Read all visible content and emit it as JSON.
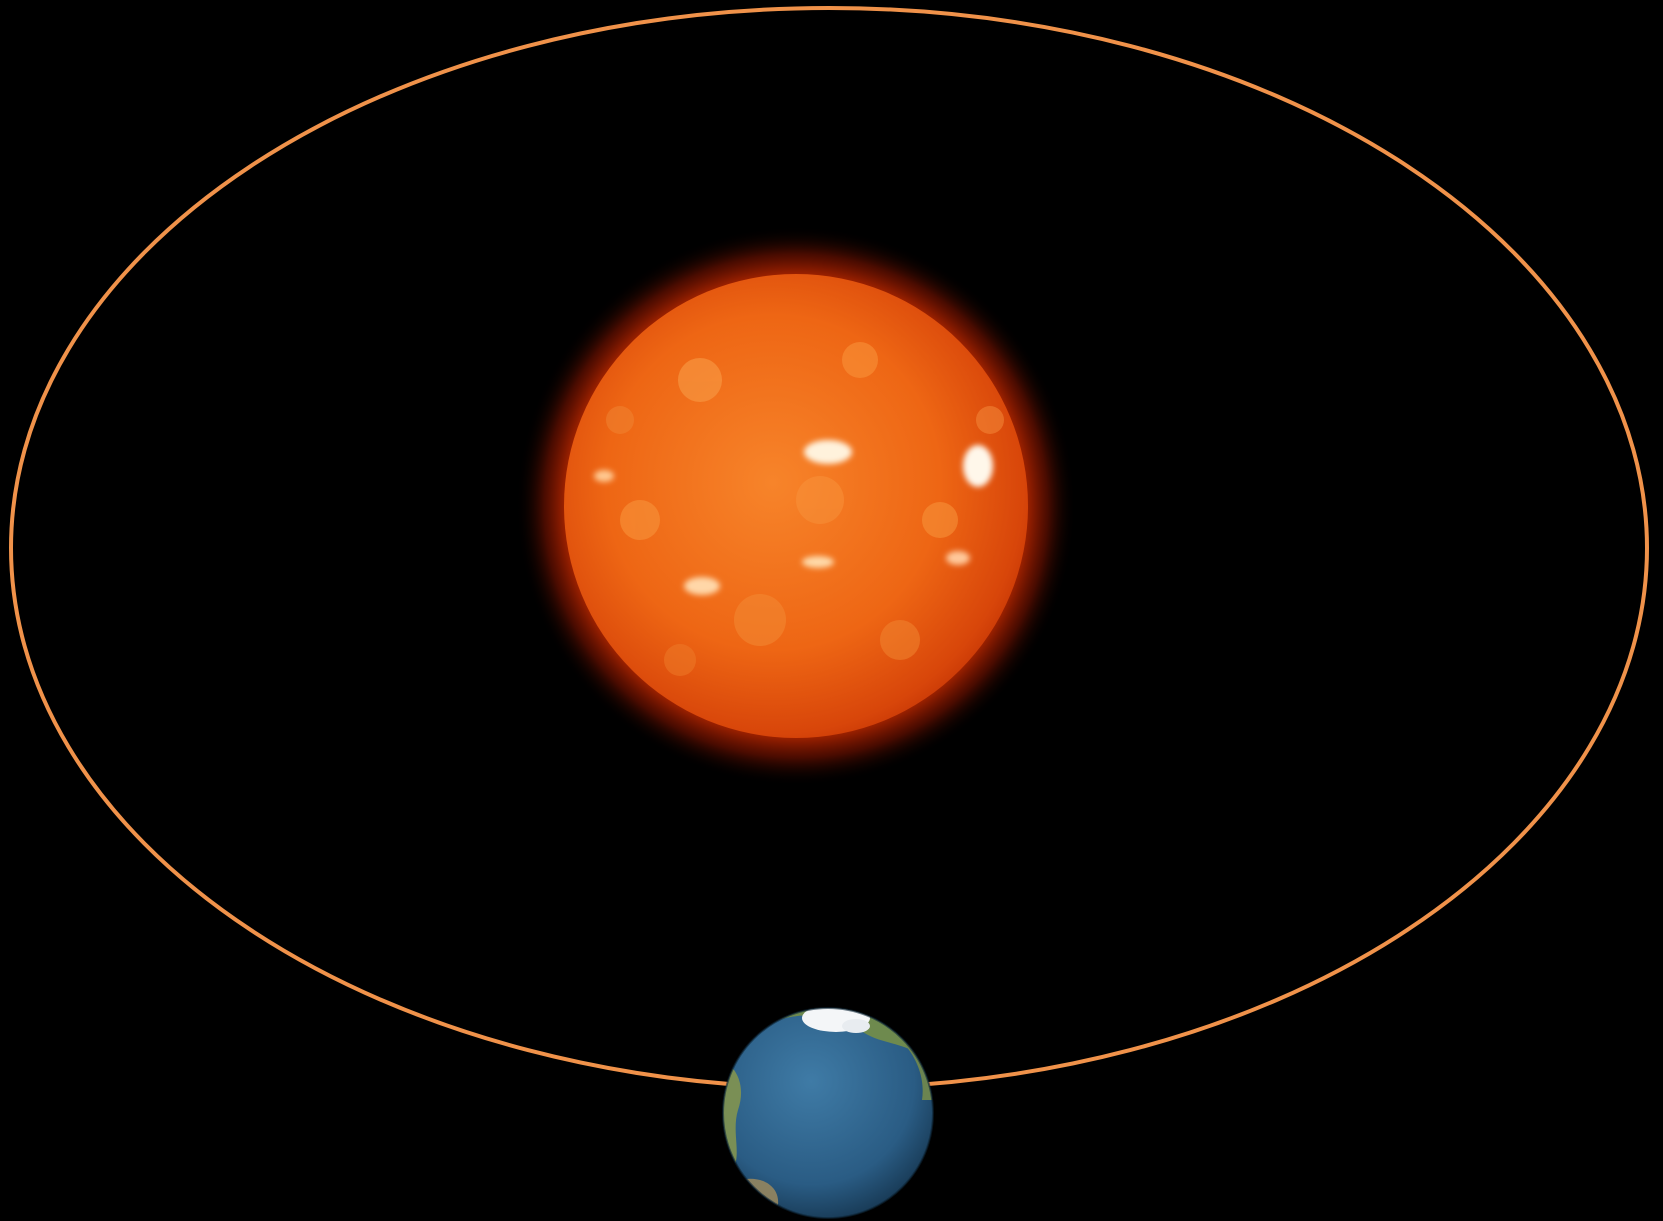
{
  "diagram": {
    "background_color": "#000000",
    "orbit": {
      "stroke_color": "#F0924A"
    },
    "sun": {
      "core_color": "#F06A18",
      "limb_color": "#D33A08",
      "glow_color": "#FF3A00",
      "active_region_color": "#FFF2DC"
    },
    "earth": {
      "ocean_color": "#2B5F88",
      "land_color": "#6E8A4E",
      "ice_color": "#F4F6F8"
    }
  }
}
